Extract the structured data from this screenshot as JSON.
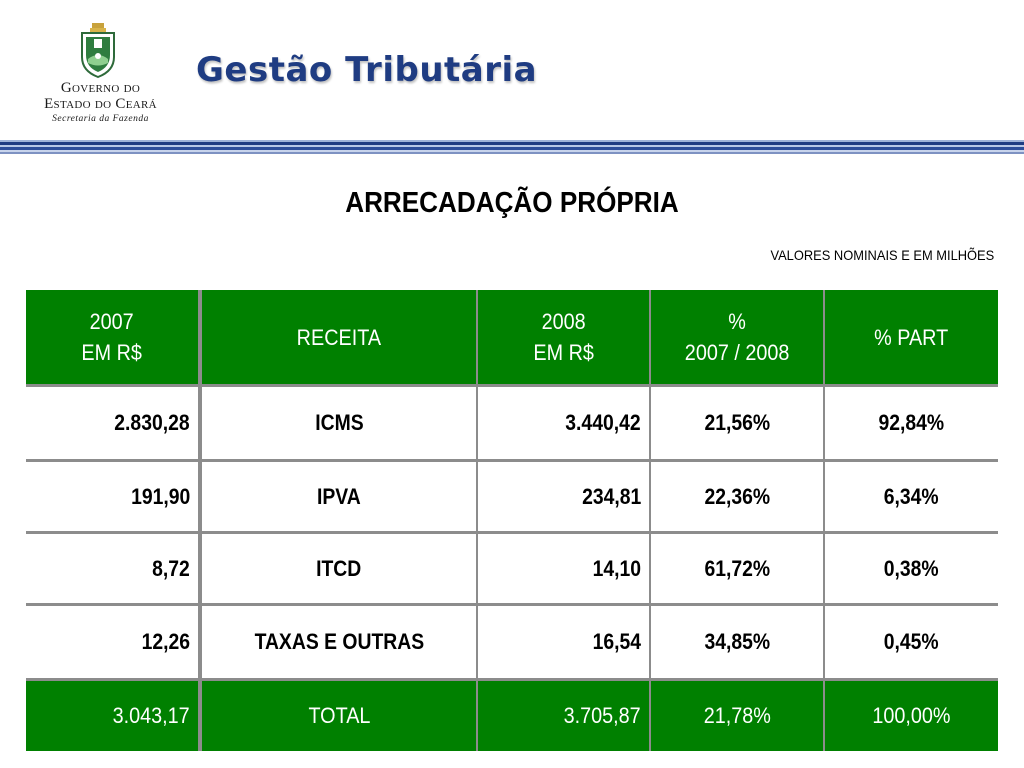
{
  "header": {
    "logo": {
      "line1": "Governo do",
      "line2": "Estado do Ceará",
      "line3": "Secretaria da Fazenda"
    },
    "title": "Gestão Tributária",
    "bar_color": "#1f3c82"
  },
  "slide": {
    "title": "ARRECADAÇÃO PRÓPRIA",
    "subtitle": "VALORES NOMINAIS E EM MILHÕES"
  },
  "colors": {
    "header_green": "#008000",
    "text_blue": "#1f3c82",
    "grid_gray": "#8c8c8c"
  },
  "table": {
    "headers": [
      {
        "line1": "2007",
        "line2": "EM R$"
      },
      {
        "line1": "RECEITA",
        "line2": ""
      },
      {
        "line1": "2008",
        "line2": "EM R$"
      },
      {
        "line1": "%",
        "line2": "2007 / 2008"
      },
      {
        "line1": "% PART",
        "line2": ""
      }
    ],
    "rows": [
      [
        "2.830,28",
        "ICMS",
        "3.440,42",
        "21,56%",
        "92,84%"
      ],
      [
        "191,90",
        "IPVA",
        "234,81",
        "22,36%",
        "6,34%"
      ],
      [
        "8,72",
        "ITCD",
        "14,10",
        "61,72%",
        "0,38%"
      ],
      [
        "12,26",
        "TAXAS E OUTRAS",
        "16,54",
        "34,85%",
        "0,45%"
      ]
    ],
    "total": [
      "3.043,17",
      "TOTAL",
      "3.705,87",
      "21,78%",
      "100,00%"
    ]
  }
}
